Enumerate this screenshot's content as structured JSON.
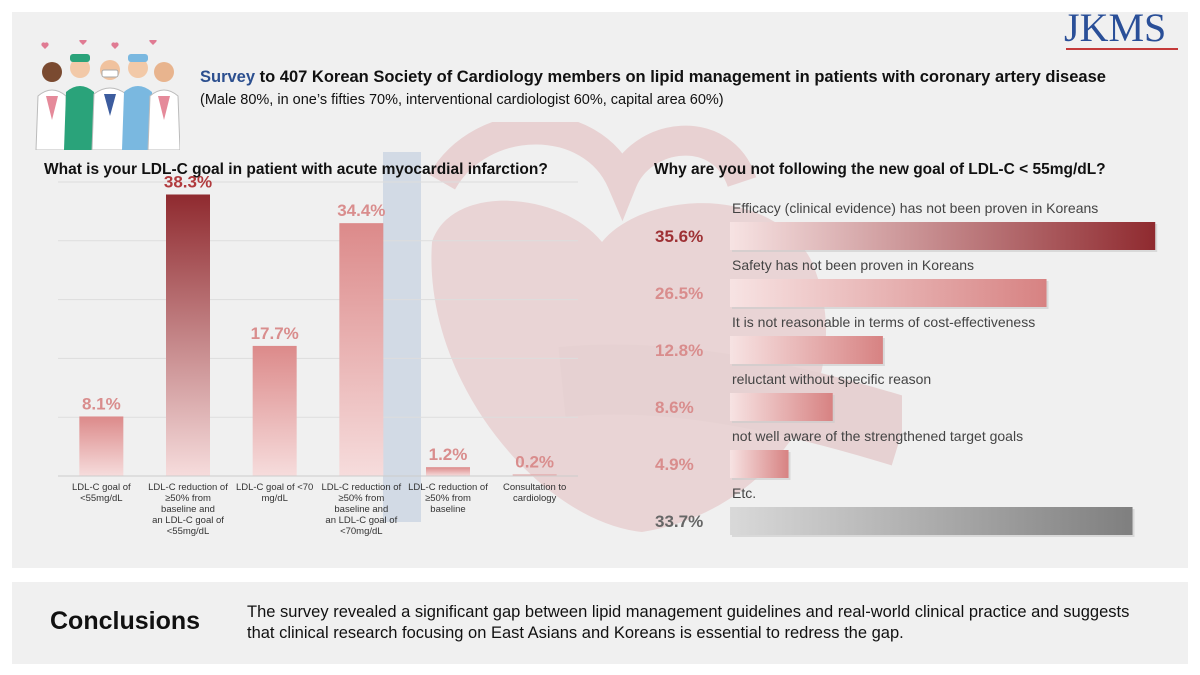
{
  "logo": "JKMS",
  "survey": {
    "title_accent": "Survey",
    "title_rest": " to 407 Korean Society of Cardiology members on lipid management  in patients with coronary artery disease",
    "subtitle": "(Male 80%, in one’s fifties 70%, interventional cardiologist 60%, capital area 60%)"
  },
  "questions": {
    "left": "What is your LDL-C goal in patient with acute myocardial infarction?",
    "right": "Why are you not following the new goal of LDL-C < 55mg/dL?"
  },
  "chart_data": [
    {
      "type": "bar",
      "title": "What is your LDL-C goal in patient with acute myocardial infarction?",
      "categories": [
        "LDL-C goal of <55mg/dL",
        "LDL-C reduction of ≥50% from baseline and an LDL-C goal of <55mg/dL",
        "LDL-C goal of <70 mg/dL",
        "LDL-C reduction of ≥50% from baseline and an LDL-C goal of <70mg/dL",
        "LDL-C reduction of ≥50% from baseline",
        "Consultation to cardiology"
      ],
      "category_lines": [
        [
          "LDL-C goal of",
          "<55mg/dL"
        ],
        [
          "LDL-C reduction of",
          "≥50% from",
          "baseline and",
          "an LDL-C goal of",
          "<55mg/dL"
        ],
        [
          "LDL-C goal of <70",
          "mg/dL"
        ],
        [
          "LDL-C reduction of",
          "≥50% from",
          "baseline and",
          "an LDL-C goal of",
          "<70mg/dL"
        ],
        [
          "LDL-C reduction of",
          "≥50% from",
          "baseline"
        ],
        [
          "Consultation to",
          "cardiology"
        ]
      ],
      "values": [
        8.1,
        38.3,
        17.7,
        34.4,
        1.2,
        0.2
      ],
      "value_labels": [
        "8.1%",
        "38.3%",
        "17.7%",
        "34.4%",
        "1.2%",
        "0.2%"
      ],
      "ylim": [
        0,
        40
      ],
      "grid": true,
      "colors": {
        "highlight_label": "#b13b3e",
        "normal_label": "#d98d8d",
        "bar_top_highlight": "#8f2a2f",
        "bar_top_normal": "#dc8a8a",
        "bar_bottom": "#f6dcdc"
      }
    },
    {
      "type": "bar",
      "orientation": "horizontal",
      "title": "Why are you not following the new goal of LDL-C < 55mg/dL?",
      "categories": [
        "Efficacy (clinical evidence) has not been proven in Koreans",
        "Safety has not been proven in Koreans",
        "It is not reasonable in terms of cost-effectiveness",
        "reluctant without specific reason",
        "not well aware of the strengthened target goals",
        "Etc."
      ],
      "values": [
        35.6,
        26.5,
        12.8,
        8.6,
        4.9,
        33.7
      ],
      "value_labels": [
        "35.6%",
        "26.5%",
        "12.8%",
        "8.6%",
        "4.9%",
        "33.7%"
      ],
      "xlim": [
        0,
        36
      ],
      "colors": {
        "highlight_label": "#9e3034",
        "normal_label": "#d98d8d",
        "gray_label": "#666666",
        "bar_end_highlight": "#8f2a2f",
        "bar_end_normal": "#d78282",
        "bar_start": "#f7e3e3",
        "gray_start": "#d9d9d9",
        "gray_end": "#7f7f7f"
      }
    }
  ],
  "conclusions": {
    "title": "Conclusions",
    "text": "The survey revealed a significant gap between lipid management guidelines and real-world clinical practice and suggests that clinical research focusing on East Asians and Koreans is essential to redress the gap."
  }
}
